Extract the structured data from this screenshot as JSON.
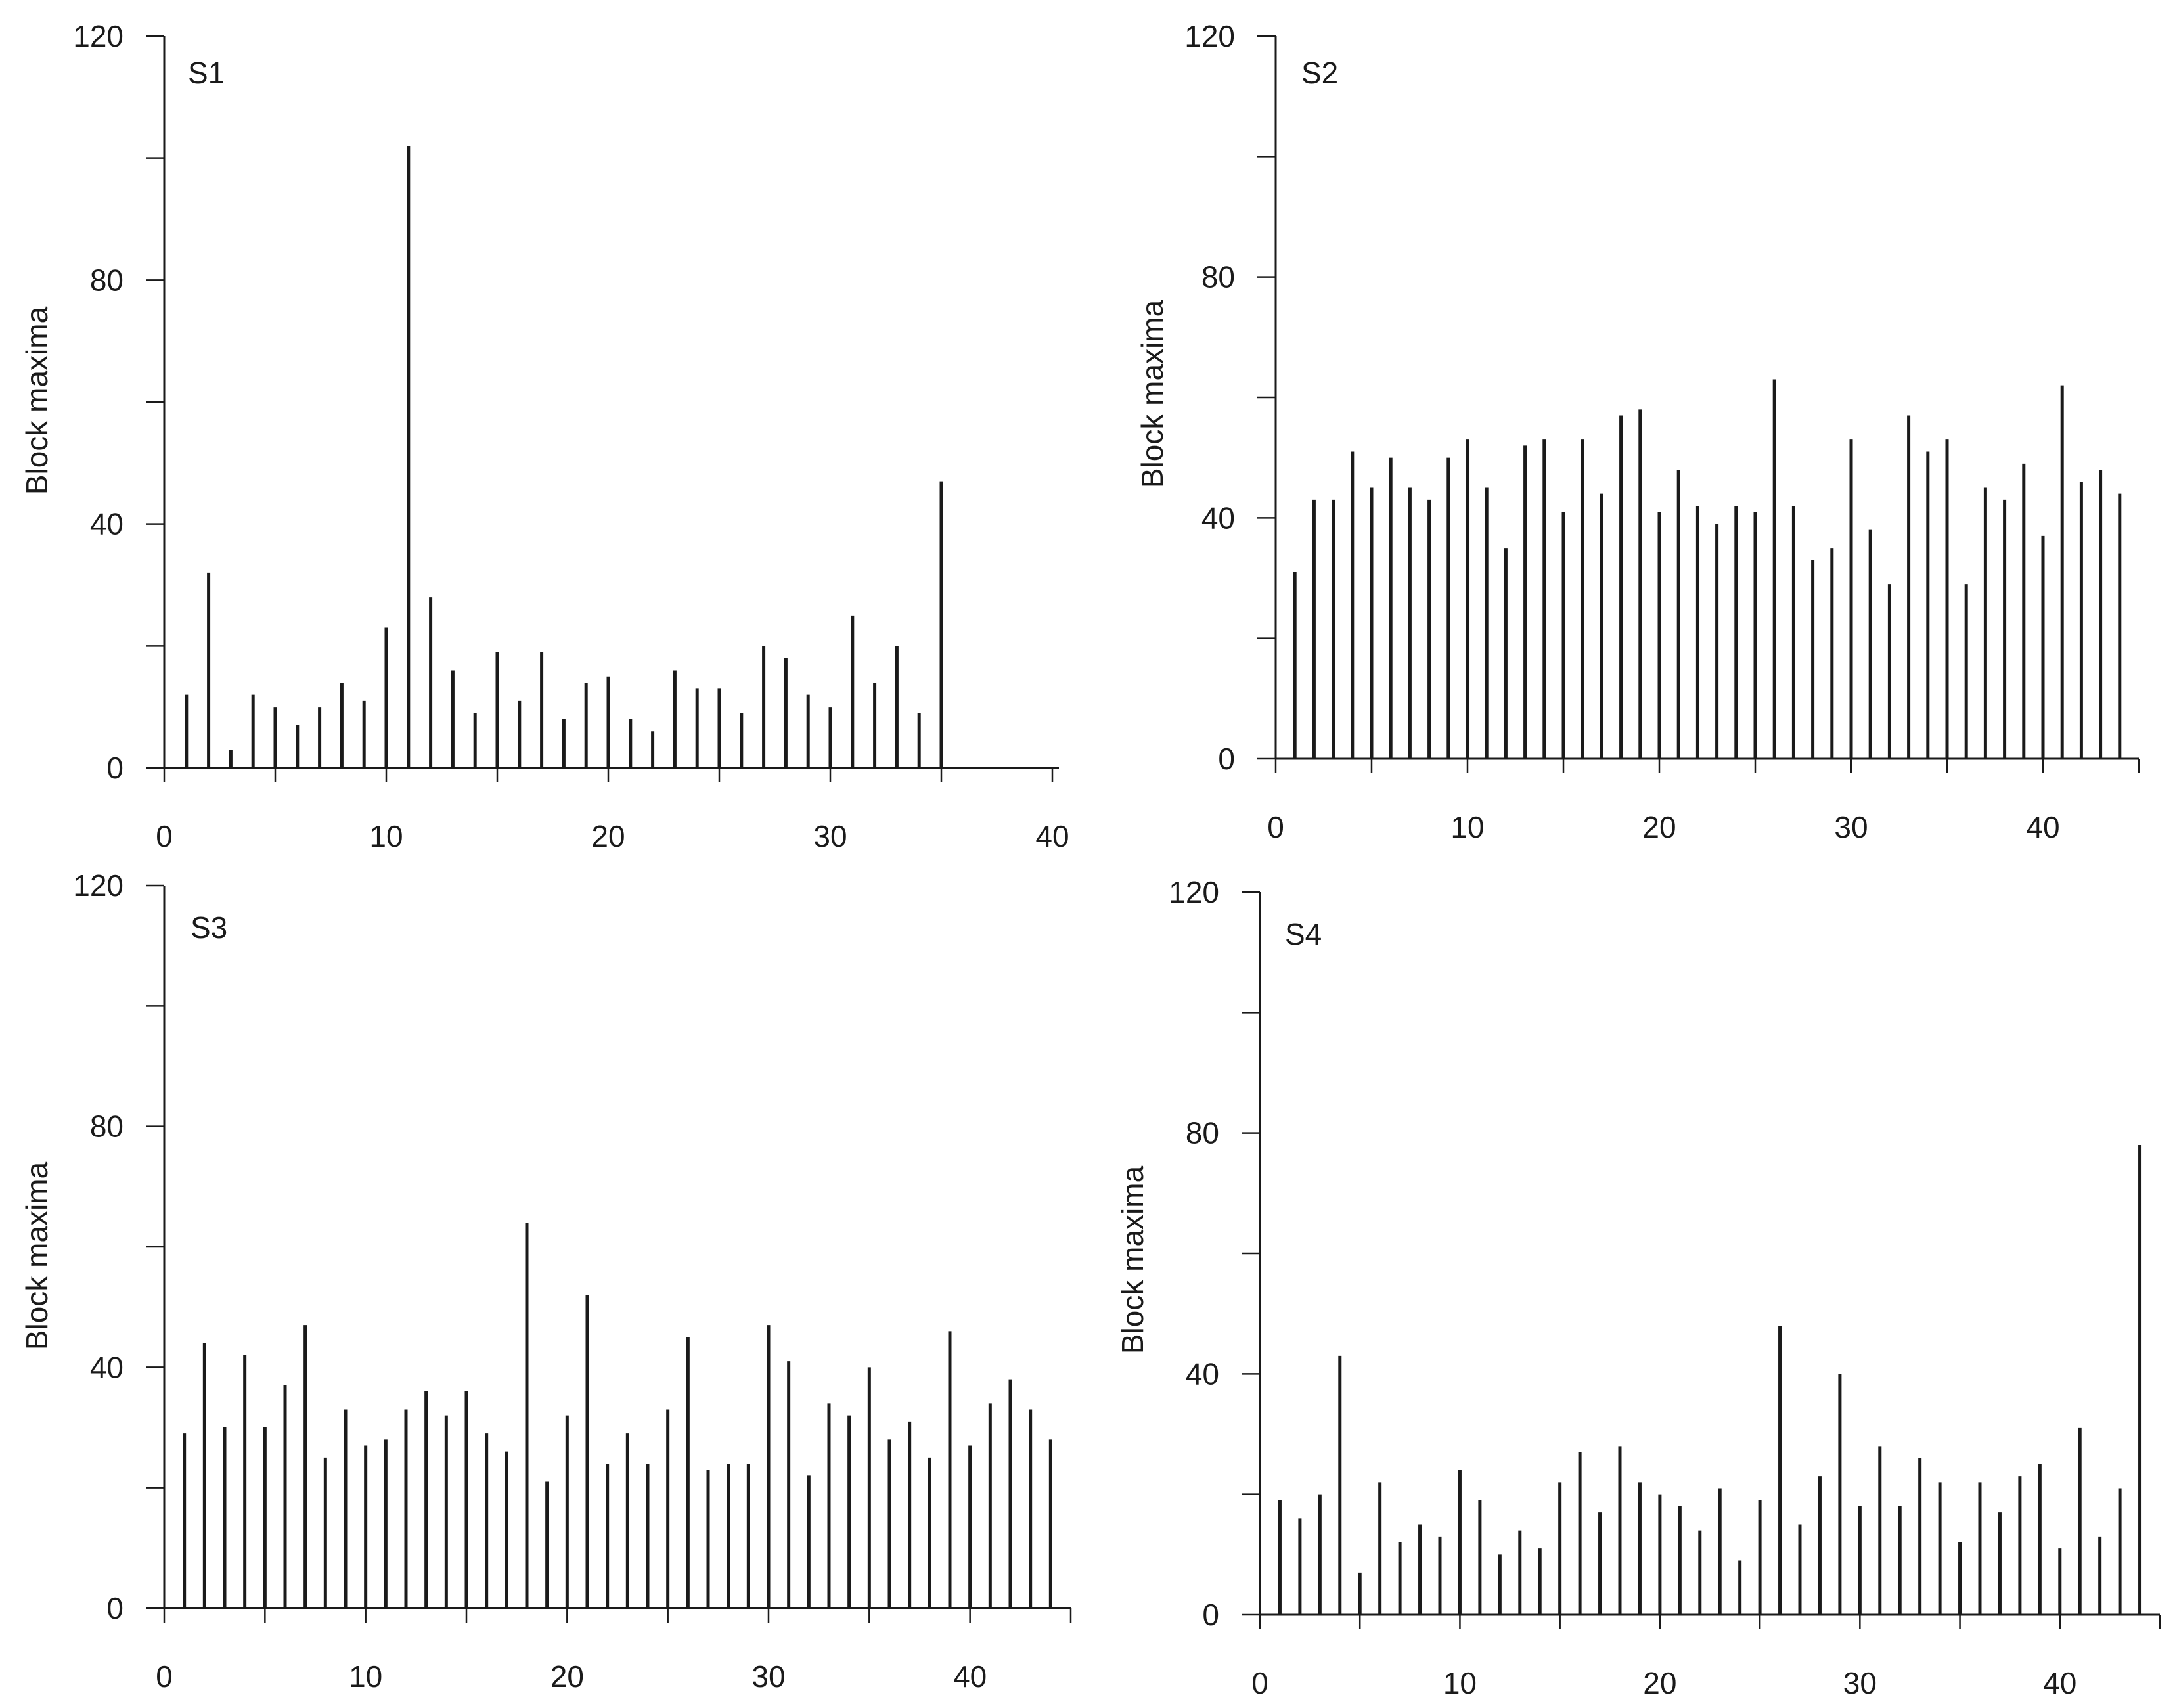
{
  "chart_data": [
    {
      "type": "bar",
      "panel": "S1",
      "ylabel": "Block maxima",
      "xlim": [
        0,
        40
      ],
      "ylim": [
        0,
        120
      ],
      "x_ticks": [
        0,
        10,
        20,
        30,
        40
      ],
      "y_ticks": [
        0,
        40,
        80,
        120
      ],
      "x": [
        1,
        2,
        3,
        4,
        5,
        6,
        7,
        8,
        9,
        10,
        11,
        12,
        13,
        14,
        15,
        16,
        17,
        18,
        19,
        20,
        21,
        22,
        23,
        24,
        25,
        26,
        27,
        28,
        29,
        30,
        31,
        32,
        33,
        34,
        35
      ],
      "values": [
        12,
        32,
        3,
        12,
        10,
        7,
        10,
        14,
        11,
        23,
        102,
        28,
        16,
        9,
        19,
        11,
        19,
        8,
        14,
        15,
        8,
        6,
        16,
        13,
        13,
        9,
        20,
        18,
        12,
        10,
        25,
        14,
        20,
        9,
        47
      ]
    },
    {
      "type": "bar",
      "panel": "S2",
      "ylabel": "Block maxima",
      "xlim": [
        0,
        45
      ],
      "ylim": [
        0,
        120
      ],
      "x_ticks": [
        0,
        10,
        20,
        30,
        40
      ],
      "y_ticks": [
        0,
        40,
        80,
        120
      ],
      "x": [
        1,
        2,
        3,
        4,
        5,
        6,
        7,
        8,
        9,
        10,
        11,
        12,
        13,
        14,
        15,
        16,
        17,
        18,
        19,
        20,
        21,
        22,
        23,
        24,
        25,
        26,
        27,
        28,
        29,
        30,
        31,
        32,
        33,
        34,
        35,
        36,
        37,
        38,
        39,
        40,
        41,
        42,
        43,
        44
      ],
      "values": [
        31,
        43,
        43,
        51,
        45,
        50,
        45,
        43,
        50,
        53,
        45,
        35,
        52,
        53,
        41,
        53,
        44,
        57,
        58,
        41,
        48,
        42,
        39,
        42,
        41,
        63,
        42,
        33,
        35,
        53,
        38,
        29,
        57,
        51,
        53,
        29,
        45,
        43,
        49,
        37,
        62,
        46,
        48,
        44
      ]
    },
    {
      "type": "bar",
      "panel": "S3",
      "ylabel": "Block maxima",
      "xlim": [
        0,
        45
      ],
      "ylim": [
        0,
        120
      ],
      "x_ticks": [
        0,
        10,
        20,
        30,
        40
      ],
      "y_ticks": [
        0,
        40,
        80,
        120
      ],
      "x": [
        1,
        2,
        3,
        4,
        5,
        6,
        7,
        8,
        9,
        10,
        11,
        12,
        13,
        14,
        15,
        16,
        17,
        18,
        19,
        20,
        21,
        22,
        23,
        24,
        25,
        26,
        27,
        28,
        29,
        30,
        31,
        32,
        33,
        34,
        35,
        36,
        37,
        38,
        39,
        40,
        41,
        42,
        43,
        44
      ],
      "values": [
        29,
        44,
        30,
        42,
        30,
        37,
        47,
        25,
        33,
        27,
        28,
        33,
        36,
        32,
        36,
        29,
        26,
        64,
        21,
        32,
        52,
        24,
        29,
        24,
        33,
        45,
        23,
        24,
        24,
        47,
        41,
        22,
        34,
        32,
        40,
        28,
        31,
        25,
        46,
        27,
        34,
        38,
        33,
        28
      ]
    },
    {
      "type": "bar",
      "panel": "S4",
      "ylabel": "Block maxima",
      "xlim": [
        0,
        45
      ],
      "ylim": [
        0,
        120
      ],
      "x_ticks": [
        0,
        10,
        20,
        30,
        40
      ],
      "y_ticks": [
        0,
        40,
        80,
        120
      ],
      "x": [
        1,
        2,
        3,
        4,
        5,
        6,
        7,
        8,
        9,
        10,
        11,
        12,
        13,
        14,
        15,
        16,
        17,
        18,
        19,
        20,
        21,
        22,
        23,
        24,
        25,
        26,
        27,
        28,
        29,
        30,
        31,
        32,
        33,
        34,
        35,
        36,
        37,
        38,
        39,
        40,
        41,
        42,
        43,
        44
      ],
      "values": [
        19,
        16,
        20,
        43,
        7,
        22,
        12,
        15,
        13,
        24,
        19,
        10,
        14,
        11,
        22,
        27,
        17,
        28,
        22,
        20,
        18,
        14,
        21,
        9,
        19,
        48,
        15,
        23,
        40,
        18,
        28,
        18,
        26,
        22,
        12,
        22,
        17,
        23,
        25,
        11,
        31,
        13,
        21,
        78
      ]
    }
  ]
}
